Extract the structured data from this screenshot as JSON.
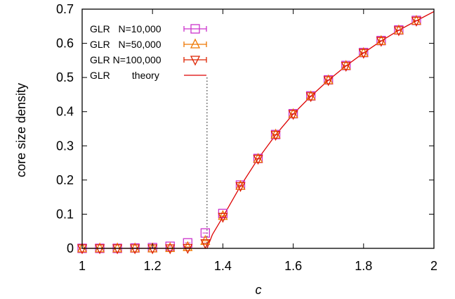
{
  "chart_data": {
    "type": "scatter",
    "xlabel": "c",
    "ylabel": "core size density",
    "xlim": [
      1,
      2
    ],
    "ylim": [
      0,
      0.7
    ],
    "xticks": [
      "1",
      "1.2",
      "1.4",
      "1.6",
      "1.8",
      "2"
    ],
    "yticks": [
      "0",
      "0.1",
      "0.2",
      "0.3",
      "0.4",
      "0.5",
      "0.6",
      "0.7"
    ],
    "legend_position": "top-left",
    "threshold_line_x": 1.355,
    "series": [
      {
        "name": "GLR   N=10,000",
        "marker": "square",
        "color": "#cc33cc",
        "x": [
          1.0,
          1.05,
          1.1,
          1.15,
          1.2,
          1.25,
          1.3,
          1.35,
          1.4,
          1.45,
          1.5,
          1.55,
          1.6,
          1.65,
          1.7,
          1.75,
          1.8,
          1.85,
          1.9,
          1.95
        ],
        "y": [
          0.0,
          0.0,
          0.0,
          0.001,
          0.002,
          0.006,
          0.016,
          0.045,
          0.102,
          0.185,
          0.263,
          0.333,
          0.394,
          0.446,
          0.493,
          0.535,
          0.573,
          0.608,
          0.639,
          0.667
        ]
      },
      {
        "name": "GLR   N=50,000",
        "marker": "triangle-up",
        "color": "#ee7700",
        "x": [
          1.0,
          1.05,
          1.1,
          1.15,
          1.2,
          1.25,
          1.3,
          1.35,
          1.4,
          1.45,
          1.5,
          1.55,
          1.6,
          1.65,
          1.7,
          1.75,
          1.8,
          1.85,
          1.9,
          1.95
        ],
        "y": [
          0.0,
          0.0,
          0.0,
          0.0,
          0.0,
          0.001,
          0.004,
          0.022,
          0.095,
          0.183,
          0.262,
          0.333,
          0.393,
          0.445,
          0.492,
          0.534,
          0.572,
          0.607,
          0.638,
          0.666
        ]
      },
      {
        "name": "GLR N=100,000",
        "marker": "triangle-down",
        "color": "#dd2200",
        "x": [
          1.0,
          1.05,
          1.1,
          1.15,
          1.2,
          1.25,
          1.3,
          1.35,
          1.4,
          1.45,
          1.5,
          1.55,
          1.6,
          1.65,
          1.7,
          1.75,
          1.8,
          1.85,
          1.9,
          1.95
        ],
        "y": [
          0.0,
          0.0,
          0.0,
          0.0,
          0.0,
          0.0,
          0.001,
          0.015,
          0.092,
          0.182,
          0.262,
          0.332,
          0.393,
          0.445,
          0.492,
          0.534,
          0.572,
          0.607,
          0.638,
          0.666
        ]
      },
      {
        "name": "GLR        theory",
        "marker": "line",
        "color": "#dd0000",
        "x": [
          1.0,
          1.2,
          1.355,
          1.37,
          1.4,
          1.45,
          1.5,
          1.55,
          1.6,
          1.65,
          1.7,
          1.75,
          1.8,
          1.85,
          1.9,
          1.95,
          2.0
        ],
        "y": [
          0.0,
          0.0,
          0.0,
          0.04,
          0.092,
          0.182,
          0.262,
          0.332,
          0.393,
          0.445,
          0.492,
          0.534,
          0.572,
          0.607,
          0.638,
          0.666,
          0.693
        ]
      }
    ]
  }
}
